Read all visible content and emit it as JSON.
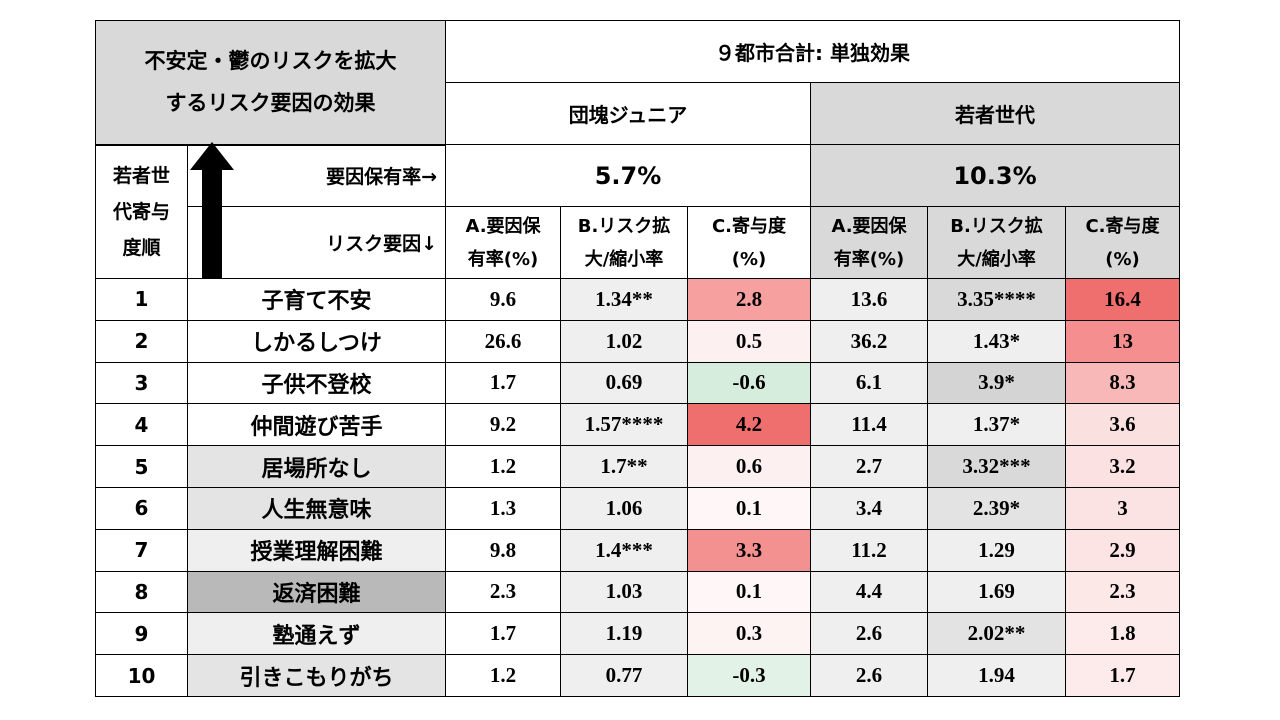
{
  "corner_title": [
    "不安定・鬱のリスクを拡大",
    "するリスク要因の効果"
  ],
  "top_header": "９都市合計: 単独効果",
  "groups": [
    {
      "name": "団塊ジュニア",
      "prevalence": "5.7%"
    },
    {
      "name": "若者世代",
      "prevalence": "10.3%"
    }
  ],
  "rank_header": [
    "若者世",
    "代寄与",
    "度順"
  ],
  "prevalence_label": "要因保有率→",
  "factor_label": "リスク要因↓",
  "subheaders": [
    [
      "A.要因保",
      "有率(%)"
    ],
    [
      "B.リスク拡",
      "大/縮小率"
    ],
    [
      "C.寄与度",
      "(%)"
    ],
    [
      "A.要因保",
      "有率(%)"
    ],
    [
      "B.リスク拡",
      "大/縮小率"
    ],
    [
      "C.寄与度",
      "(%)"
    ]
  ],
  "rows": [
    {
      "rank": "1",
      "factor": "子育て不安",
      "factor_bg": "#ffffff",
      "cells": [
        [
          "9.6",
          "#ffffff"
        ],
        [
          "1.34**",
          "#efefef"
        ],
        [
          "2.8",
          "#f6a0a0"
        ],
        [
          "13.6",
          "#efefef"
        ],
        [
          "3.35****",
          "#d9d9d9"
        ],
        [
          "16.4",
          "#ef6e6e"
        ]
      ]
    },
    {
      "rank": "2",
      "factor": "しかるしつけ",
      "factor_bg": "#ffffff",
      "cells": [
        [
          "26.6",
          "#ffffff"
        ],
        [
          "1.02",
          "#efefef"
        ],
        [
          "0.5",
          "#fdf0f0"
        ],
        [
          "36.2",
          "#efefef"
        ],
        [
          "1.43*",
          "#efefef"
        ],
        [
          "13",
          "#f58f8f"
        ]
      ]
    },
    {
      "rank": "3",
      "factor": "子供不登校",
      "factor_bg": "#ffffff",
      "cells": [
        [
          "1.7",
          "#ffffff"
        ],
        [
          "0.69",
          "#efefef"
        ],
        [
          "-0.6",
          "#d6ecdc"
        ],
        [
          "6.1",
          "#efefef"
        ],
        [
          "3.9*",
          "#d4d4d4"
        ],
        [
          "8.3",
          "#f8b8b8"
        ]
      ]
    },
    {
      "rank": "4",
      "factor": "仲間遊び苦手",
      "factor_bg": "#ffffff",
      "cells": [
        [
          "9.2",
          "#ffffff"
        ],
        [
          "1.57****",
          "#efefef"
        ],
        [
          "4.2",
          "#ef6e6e"
        ],
        [
          "11.4",
          "#efefef"
        ],
        [
          "1.37*",
          "#efefef"
        ],
        [
          "3.6",
          "#fbe0e0"
        ]
      ]
    },
    {
      "rank": "5",
      "factor": "居場所なし",
      "factor_bg": "#e4e4e4",
      "cells": [
        [
          "1.2",
          "#ffffff"
        ],
        [
          "1.7**",
          "#efefef"
        ],
        [
          "0.6",
          "#fdf0f0"
        ],
        [
          "2.7",
          "#efefef"
        ],
        [
          "3.32***",
          "#d9d9d9"
        ],
        [
          "3.2",
          "#fbe1e1"
        ]
      ]
    },
    {
      "rank": "6",
      "factor": "人生無意味",
      "factor_bg": "#e4e4e4",
      "cells": [
        [
          "1.3",
          "#ffffff"
        ],
        [
          "1.06",
          "#efefef"
        ],
        [
          "0.1",
          "#fff7f7"
        ],
        [
          "3.4",
          "#efefef"
        ],
        [
          "2.39*",
          "#e3e3e3"
        ],
        [
          "3",
          "#fce3e3"
        ]
      ]
    },
    {
      "rank": "7",
      "factor": "授業理解困難",
      "factor_bg": "#efefef",
      "cells": [
        [
          "9.8",
          "#ffffff"
        ],
        [
          "1.4***",
          "#efefef"
        ],
        [
          "3.3",
          "#f39090"
        ],
        [
          "11.2",
          "#efefef"
        ],
        [
          "1.29",
          "#efefef"
        ],
        [
          "2.9",
          "#fce4e4"
        ]
      ]
    },
    {
      "rank": "8",
      "factor": "返済困難",
      "factor_bg": "#b9b9b9",
      "cells": [
        [
          "2.3",
          "#ffffff"
        ],
        [
          "1.03",
          "#efefef"
        ],
        [
          "0.1",
          "#fff7f7"
        ],
        [
          "4.4",
          "#efefef"
        ],
        [
          "1.69",
          "#efefef"
        ],
        [
          "2.3",
          "#fde8e8"
        ]
      ]
    },
    {
      "rank": "9",
      "factor": "塾通えず",
      "factor_bg": "#efefef",
      "cells": [
        [
          "1.7",
          "#ffffff"
        ],
        [
          "1.19",
          "#efefef"
        ],
        [
          "0.3",
          "#fdf3f3"
        ],
        [
          "2.6",
          "#efefef"
        ],
        [
          "2.02**",
          "#e3e3e3"
        ],
        [
          "1.8",
          "#fdeaea"
        ]
      ]
    },
    {
      "rank": "10",
      "factor": "引きこもりがち",
      "factor_bg": "#e4e4e4",
      "cells": [
        [
          "1.2",
          "#ffffff"
        ],
        [
          "0.77",
          "#efefef"
        ],
        [
          "-0.3",
          "#e2f2e6"
        ],
        [
          "2.6",
          "#efefef"
        ],
        [
          "1.94",
          "#efefef"
        ],
        [
          "1.7",
          "#fdebeb"
        ]
      ]
    }
  ]
}
